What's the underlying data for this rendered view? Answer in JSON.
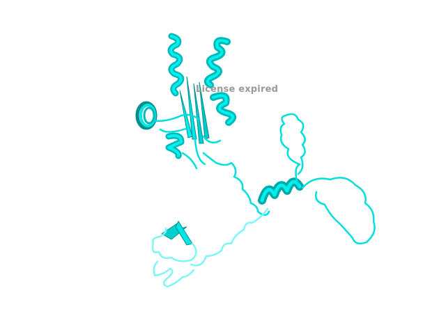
{
  "watermark": "License expired",
  "colors": {
    "background": "#ffffff",
    "ribbon": "#00e5e5",
    "ribbon_shade": "#008f8f",
    "ribbon_light": "#7ff5f5"
  },
  "subject": "protein-cartoon-ribbon"
}
